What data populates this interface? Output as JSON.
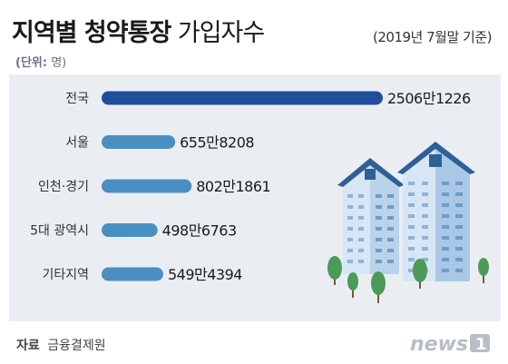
{
  "header": {
    "title_bold": "지역별 청약통장",
    "title_light": "가입자수",
    "date_note": "(2019년 7월말 기준)",
    "unit_label": "(단위:",
    "unit_value": "명)"
  },
  "footer": {
    "source_label": "자료",
    "source_value": "금융결제원",
    "logo_text": "news1"
  },
  "colors": {
    "highlight_bar": "#1e4e9c",
    "bar": "#4a8fc1",
    "panel": "#eaeef2"
  },
  "chart_data": {
    "type": "bar",
    "orientation": "horizontal",
    "categories": [
      "전국",
      "서울",
      "인천·경기",
      "5대 광역시",
      "기타지역"
    ],
    "values": [
      25061226,
      6558208,
      8021861,
      4986763,
      5494394
    ],
    "value_labels": [
      "2506만1226",
      "655만8208",
      "802만1861",
      "498만6763",
      "549만4394"
    ],
    "title": "지역별 청약통장 가입자수",
    "subtitle": "(2019년 7월말 기준)",
    "unit": "명",
    "grid": false,
    "legend": "none"
  }
}
